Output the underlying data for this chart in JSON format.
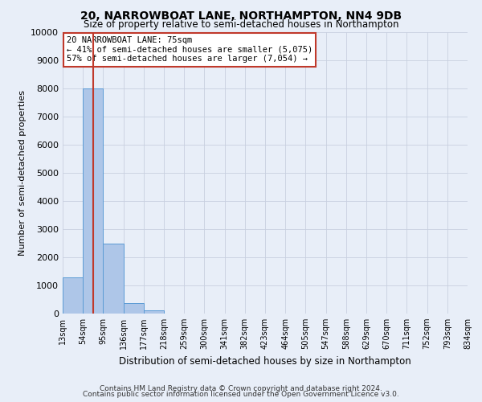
{
  "title": "20, NARROWBOAT LANE, NORTHAMPTON, NN4 9DB",
  "subtitle": "Size of property relative to semi-detached houses in Northampton",
  "xlabel": "Distribution of semi-detached houses by size in Northampton",
  "ylabel": "Number of semi-detached properties",
  "bar_values": [
    1300,
    8000,
    2500,
    380,
    120,
    0,
    0,
    0,
    0,
    0,
    0,
    0,
    0,
    0,
    0,
    0,
    0,
    0,
    0,
    0
  ],
  "bin_labels": [
    "13sqm",
    "54sqm",
    "95sqm",
    "136sqm",
    "177sqm",
    "218sqm",
    "259sqm",
    "300sqm",
    "341sqm",
    "382sqm",
    "423sqm",
    "464sqm",
    "505sqm",
    "547sqm",
    "588sqm",
    "629sqm",
    "670sqm",
    "711sqm",
    "752sqm",
    "793sqm",
    "834sqm"
  ],
  "bar_color": "#aec6e8",
  "bar_edge_color": "#5b9bd5",
  "red_line_color": "#c0392b",
  "annotation_line1": "20 NARROWBOAT LANE: 75sqm",
  "annotation_line2": "← 41% of semi-detached houses are smaller (5,075)",
  "annotation_line3": "57% of semi-detached houses are larger (7,054) →",
  "annotation_box_color": "#ffffff",
  "annotation_box_edge_color": "#c0392b",
  "ylim": [
    0,
    10000
  ],
  "yticks": [
    0,
    1000,
    2000,
    3000,
    4000,
    5000,
    6000,
    7000,
    8000,
    9000,
    10000
  ],
  "footer_line1": "Contains HM Land Registry data © Crown copyright and database right 2024.",
  "footer_line2": "Contains public sector information licensed under the Open Government Licence v3.0.",
  "bg_color": "#e8eef8",
  "plot_bg_color": "#e8eef8",
  "grid_color": "#c8d0e0"
}
